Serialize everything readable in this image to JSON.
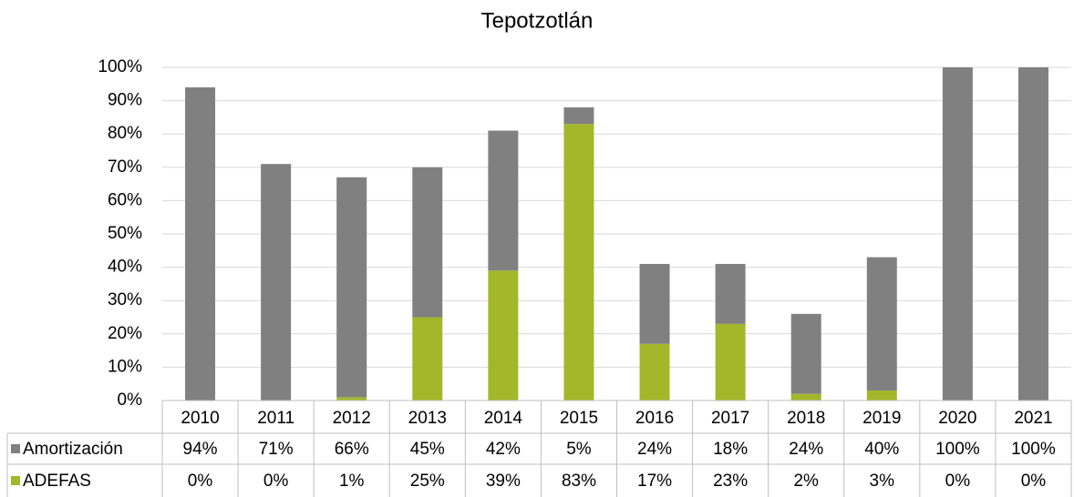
{
  "chart_data": {
    "type": "stacked_bar",
    "title": "Tepotzotlán",
    "categories": [
      "2010",
      "2011",
      "2012",
      "2013",
      "2014",
      "2015",
      "2016",
      "2017",
      "2018",
      "2019",
      "2020",
      "2021"
    ],
    "series": [
      {
        "name": "ADEFAS",
        "color": "#a2b82a",
        "values": [
          0,
          0,
          1,
          25,
          39,
          83,
          17,
          23,
          2,
          3,
          0,
          0
        ],
        "value_labels": [
          "0%",
          "0%",
          "1%",
          "25%",
          "39%",
          "83%",
          "17%",
          "23%",
          "2%",
          "3%",
          "0%",
          "0%"
        ]
      },
      {
        "name": "Amortización",
        "color": "#808080",
        "values": [
          94,
          71,
          66,
          45,
          42,
          5,
          24,
          18,
          24,
          40,
          100,
          100
        ],
        "value_labels": [
          "94%",
          "71%",
          "66%",
          "45%",
          "42%",
          "5%",
          "24%",
          "18%",
          "24%",
          "40%",
          "100%",
          "100%"
        ]
      }
    ],
    "ylim": [
      0,
      100
    ],
    "yticks": [
      {
        "value": 0,
        "label": "0%"
      },
      {
        "value": 10,
        "label": "10%"
      },
      {
        "value": 20,
        "label": "20%"
      },
      {
        "value": 30,
        "label": "30%"
      },
      {
        "value": 40,
        "label": "40%"
      },
      {
        "value": 50,
        "label": "50%"
      },
      {
        "value": 60,
        "label": "60%"
      },
      {
        "value": 70,
        "label": "70%"
      },
      {
        "value": 80,
        "label": "80%"
      },
      {
        "value": 90,
        "label": "90%"
      },
      {
        "value": 100,
        "label": "100%"
      }
    ],
    "grid": true
  }
}
